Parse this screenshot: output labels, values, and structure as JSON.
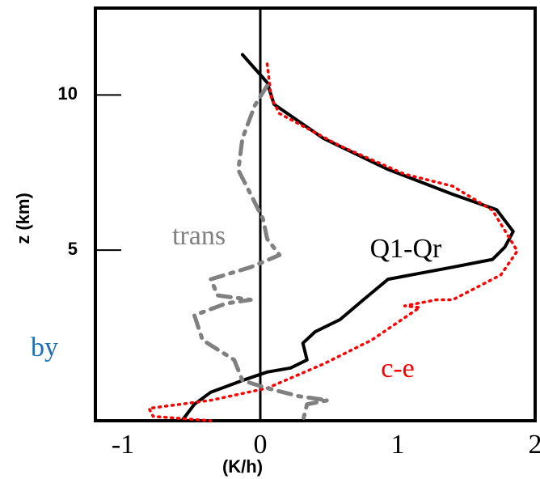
{
  "chart_data": {
    "type": "line",
    "x_label": "(K/h)",
    "y_label": "z (km)",
    "annotation": "by",
    "xlim": [
      -1.2,
      2
    ],
    "ylim": [
      -0.5,
      12.8
    ],
    "xticks": [
      -1,
      0,
      1,
      2
    ],
    "yticks": [
      5,
      10
    ],
    "series": [
      {
        "name": "Q1-Qr",
        "color": "#000000",
        "style": "solid",
        "x": [
          -0.13,
          0.05,
          0.1,
          0.46,
          0.93,
          1.4,
          1.72,
          1.84,
          1.78,
          1.69,
          1.4,
          0.93,
          0.75,
          0.58,
          0.4,
          0.31,
          0.34,
          0.22,
          0.05,
          -0.13,
          -0.36,
          -0.48,
          -0.57
        ],
        "y": [
          11.3,
          10.4,
          9.7,
          8.6,
          7.6,
          6.8,
          6.3,
          5.6,
          5.1,
          4.7,
          4.45,
          4.06,
          3.4,
          2.76,
          2.37,
          2.0,
          1.46,
          1.2,
          1.07,
          0.8,
          0.42,
          0.03,
          -0.5
        ]
      },
      {
        "name": "c-e",
        "color": "#ff0000",
        "style": "dotted",
        "x": [
          0.05,
          0.08,
          0.14,
          0.58,
          1.05,
          1.4,
          1.69,
          1.87,
          1.75,
          1.4,
          1.28,
          1.05,
          1.16,
          0.81,
          0.46,
          0.05,
          -0.36,
          -0.81,
          -0.78,
          -0.36
        ],
        "y": [
          11.0,
          9.9,
          9.4,
          8.36,
          7.45,
          7.06,
          6.28,
          4.97,
          4.2,
          3.4,
          3.4,
          3.2,
          3.15,
          2.1,
          1.33,
          0.55,
          0.16,
          -0.1,
          -0.36,
          -0.5
        ]
      },
      {
        "name": "trans",
        "color": "#808080",
        "style": "dashdot",
        "x": [
          0.05,
          -0.04,
          -0.13,
          -0.16,
          -0.07,
          0.02,
          0.05,
          0.14,
          -0.07,
          -0.36,
          -0.31,
          -0.07,
          -0.25,
          -0.48,
          -0.42,
          -0.19,
          -0.13,
          0.05,
          0.28,
          0.49,
          0.34,
          0.31
        ],
        "y": [
          10.3,
          9.66,
          8.6,
          7.58,
          6.8,
          6.0,
          5.36,
          4.84,
          4.45,
          4.06,
          3.54,
          3.4,
          3.28,
          2.9,
          2.1,
          1.46,
          0.8,
          0.55,
          0.29,
          0.16,
          0.03,
          -0.5
        ]
      }
    ]
  }
}
